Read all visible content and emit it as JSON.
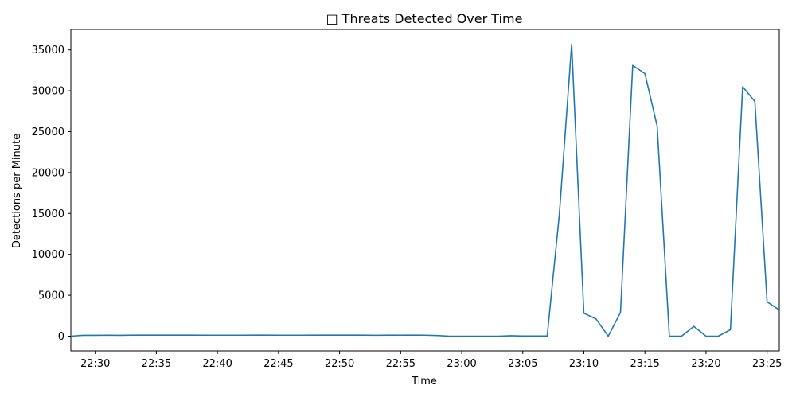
{
  "chart_data": {
    "type": "line",
    "title": "□ Threats Detected Over Time",
    "xlabel": "Time",
    "ylabel": "Detections per Minute",
    "xlim": [
      "22:28",
      "23:26"
    ],
    "ylim": [
      -1800,
      37500
    ],
    "x_ticks": [
      "22:30",
      "22:35",
      "22:40",
      "22:45",
      "22:50",
      "22:55",
      "23:00",
      "23:05",
      "23:10",
      "23:15",
      "23:20",
      "23:25"
    ],
    "y_ticks": [
      0,
      5000,
      10000,
      15000,
      20000,
      25000,
      30000,
      35000
    ],
    "grid": false,
    "colors": {
      "line": "#1f77b4"
    },
    "series": [
      {
        "x": [
          "22:28",
          "22:29",
          "22:30",
          "22:31",
          "22:32",
          "22:33",
          "22:34",
          "22:35",
          "22:36",
          "22:37",
          "22:38",
          "22:39",
          "22:40",
          "22:41",
          "22:42",
          "22:43",
          "22:44",
          "22:45",
          "22:46",
          "22:47",
          "22:48",
          "22:49",
          "22:50",
          "22:51",
          "22:52",
          "22:53",
          "22:54",
          "22:55",
          "22:56",
          "22:57",
          "22:58",
          "22:59",
          "23:00",
          "23:01",
          "23:02",
          "23:03",
          "23:04",
          "23:05",
          "23:06",
          "23:07",
          "23:08",
          "23:09",
          "23:10",
          "23:11",
          "23:12",
          "23:13",
          "23:14",
          "23:15",
          "23:16",
          "23:17",
          "23:18",
          "23:19",
          "23:20",
          "23:21",
          "23:22",
          "23:23",
          "23:24",
          "23:25",
          "23:26"
        ],
        "values": [
          0,
          100,
          100,
          120,
          100,
          130,
          130,
          130,
          130,
          130,
          130,
          120,
          120,
          120,
          120,
          130,
          130,
          120,
          120,
          120,
          130,
          130,
          130,
          130,
          130,
          110,
          130,
          120,
          130,
          120,
          80,
          0,
          0,
          0,
          0,
          0,
          50,
          20,
          20,
          20,
          15000,
          35700,
          2800,
          2100,
          0,
          2900,
          33100,
          32100,
          25700,
          0,
          0,
          1200,
          0,
          0,
          800,
          30500,
          28700,
          4200,
          3200
        ]
      }
    ]
  }
}
